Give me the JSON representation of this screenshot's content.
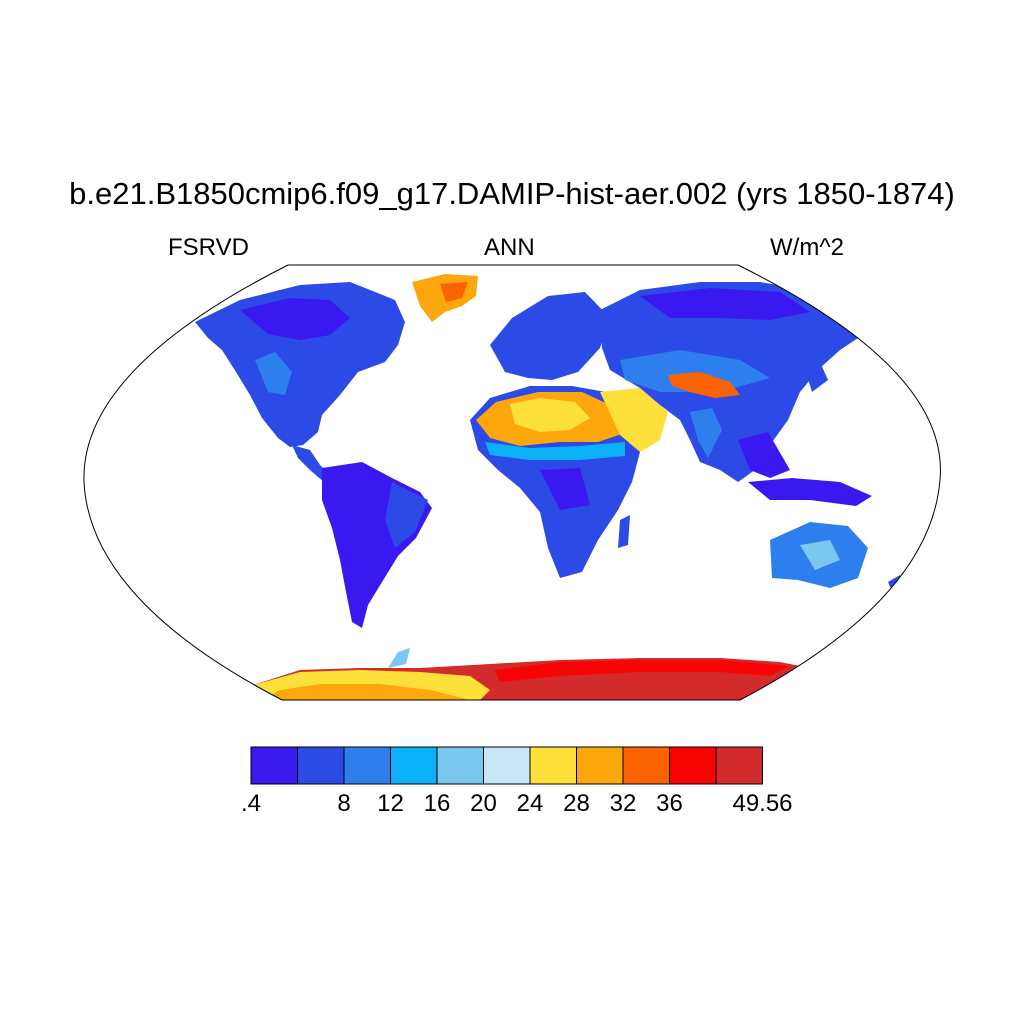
{
  "title": "b.e21.B1850cmip6.f09_g17.DAMIP-hist-aer.002 (yrs 1850-1874)",
  "subtitle_left": "FSRVD",
  "subtitle_center": "ANN",
  "subtitle_right": "W/m^2",
  "colors": {
    "c1": "#3a18f0",
    "c2": "#2b4ae6",
    "c3": "#2e7fee",
    "c4": "#0ab0f8",
    "c5": "#7ac7ef",
    "c6": "#c8e6f8",
    "c7": "#fde03a",
    "c8": "#fca70c",
    "c9": "#fb6202",
    "c10": "#f80404",
    "c11": "#d32b2b"
  },
  "colorbar": {
    "palette": [
      "#3a18f0",
      "#2b4ae6",
      "#2e7fee",
      "#0ab0f8",
      "#7ac7ef",
      "#c8e6f8",
      "#fde03a",
      "#fca70c",
      "#fb6202",
      "#f80404",
      "#d32b2b"
    ],
    "labels": [
      ".4",
      "8",
      "12",
      "16",
      "20",
      "24",
      "28",
      "32",
      "36",
      "49.56"
    ]
  },
  "chart_data": {
    "type": "heatmap",
    "projection": "Robinson",
    "variable": "FSRVD",
    "season": "ANN",
    "units": "W/m^2",
    "levels": [
      0.4,
      4,
      8,
      12,
      16,
      20,
      24,
      28,
      32,
      36,
      40,
      49.56
    ],
    "legend_placement": "bottom",
    "regions": [
      {
        "name": "North America",
        "level_index": 1
      },
      {
        "name": "Greenland",
        "level_index": 8
      },
      {
        "name": "South America",
        "level_index": 0
      },
      {
        "name": "Europe",
        "level_index": 1
      },
      {
        "name": "Africa",
        "level_index": 1
      },
      {
        "name": "Sahara",
        "level_index": 7
      },
      {
        "name": "Arabian Peninsula",
        "level_index": 6
      },
      {
        "name": "Asia",
        "level_index": 1
      },
      {
        "name": "Tibetan Plateau",
        "level_index": 8
      },
      {
        "name": "Australia",
        "level_index": 2
      },
      {
        "name": "Antarctica",
        "level_index": 10
      }
    ]
  }
}
